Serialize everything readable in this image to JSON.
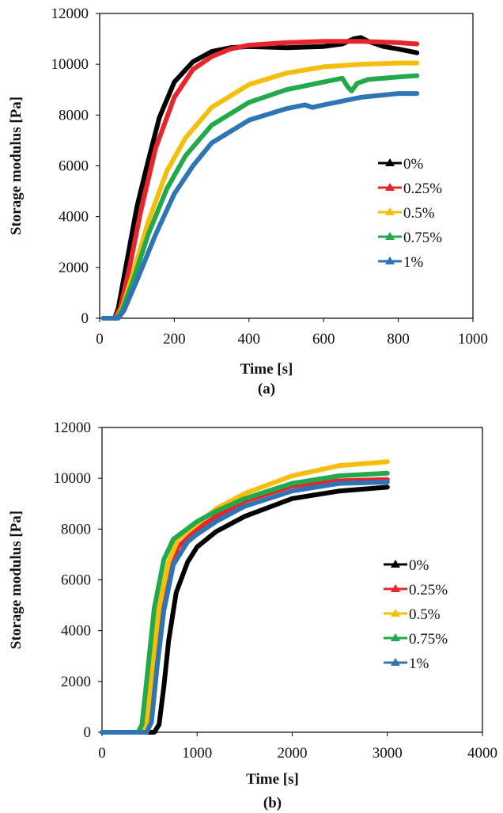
{
  "chart_data": [
    {
      "type": "line",
      "panel_label": "(a)",
      "xlabel": "Time [s]",
      "ylabel": "Storage modulus [Pa]",
      "xlim": [
        0,
        1000
      ],
      "ylim": [
        0,
        12000
      ],
      "xticks": [
        0,
        200,
        400,
        600,
        800,
        1000
      ],
      "yticks": [
        0,
        2000,
        4000,
        6000,
        8000,
        10000,
        12000
      ],
      "legend_position": "right-middle",
      "series": [
        {
          "name": "0%",
          "color": "#000000",
          "points": [
            [
              10,
              0
            ],
            [
              40,
              0
            ],
            [
              50,
              400
            ],
            [
              70,
              2000
            ],
            [
              100,
              4400
            ],
            [
              130,
              6200
            ],
            [
              160,
              7900
            ],
            [
              200,
              9300
            ],
            [
              250,
              10100
            ],
            [
              300,
              10500
            ],
            [
              350,
              10650
            ],
            [
              400,
              10700
            ],
            [
              500,
              10650
            ],
            [
              600,
              10700
            ],
            [
              650,
              10800
            ],
            [
              680,
              11000
            ],
            [
              700,
              11050
            ],
            [
              720,
              10900
            ],
            [
              760,
              10700
            ],
            [
              800,
              10600
            ],
            [
              850,
              10450
            ]
          ]
        },
        {
          "name": "0.25%",
          "color": "#e8252a",
          "points": [
            [
              10,
              0
            ],
            [
              40,
              0
            ],
            [
              55,
              400
            ],
            [
              80,
              2000
            ],
            [
              110,
              4200
            ],
            [
              150,
              6700
            ],
            [
              200,
              8700
            ],
            [
              250,
              9800
            ],
            [
              300,
              10300
            ],
            [
              350,
              10600
            ],
            [
              400,
              10750
            ],
            [
              500,
              10850
            ],
            [
              600,
              10900
            ],
            [
              700,
              10900
            ],
            [
              800,
              10850
            ],
            [
              850,
              10800
            ]
          ]
        },
        {
          "name": "0.5%",
          "color": "#f5be0b",
          "points": [
            [
              10,
              0
            ],
            [
              45,
              0
            ],
            [
              60,
              400
            ],
            [
              90,
              1800
            ],
            [
              130,
              3800
            ],
            [
              180,
              5800
            ],
            [
              230,
              7100
            ],
            [
              300,
              8300
            ],
            [
              400,
              9200
            ],
            [
              500,
              9650
            ],
            [
              600,
              9900
            ],
            [
              700,
              10000
            ],
            [
              800,
              10050
            ],
            [
              850,
              10050
            ]
          ]
        },
        {
          "name": "0.75%",
          "color": "#22a94b",
          "points": [
            [
              10,
              0
            ],
            [
              45,
              0
            ],
            [
              60,
              300
            ],
            [
              90,
              1500
            ],
            [
              130,
              3300
            ],
            [
              180,
              5100
            ],
            [
              230,
              6400
            ],
            [
              300,
              7600
            ],
            [
              400,
              8500
            ],
            [
              500,
              9000
            ],
            [
              600,
              9300
            ],
            [
              650,
              9450
            ],
            [
              665,
              9100
            ],
            [
              675,
              8950
            ],
            [
              690,
              9250
            ],
            [
              720,
              9400
            ],
            [
              800,
              9500
            ],
            [
              850,
              9550
            ]
          ]
        },
        {
          "name": "1%",
          "color": "#2e75b6",
          "points": [
            [
              10,
              0
            ],
            [
              50,
              0
            ],
            [
              65,
              300
            ],
            [
              100,
              1500
            ],
            [
              150,
              3300
            ],
            [
              200,
              4900
            ],
            [
              250,
              6000
            ],
            [
              300,
              6900
            ],
            [
              400,
              7800
            ],
            [
              500,
              8250
            ],
            [
              550,
              8400
            ],
            [
              570,
              8300
            ],
            [
              600,
              8400
            ],
            [
              700,
              8700
            ],
            [
              800,
              8850
            ],
            [
              850,
              8850
            ]
          ]
        }
      ]
    },
    {
      "type": "line",
      "panel_label": "(b)",
      "xlabel": "Time [s]",
      "ylabel": "Storage modulus [Pa]",
      "xlim": [
        0,
        4000
      ],
      "ylim": [
        0,
        12000
      ],
      "xticks": [
        0,
        1000,
        2000,
        3000,
        4000
      ],
      "yticks": [
        0,
        2000,
        4000,
        6000,
        8000,
        10000,
        12000
      ],
      "legend_position": "right-middle",
      "series": [
        {
          "name": "0%",
          "color": "#000000",
          "points": [
            [
              0,
              0
            ],
            [
              550,
              0
            ],
            [
              600,
              300
            ],
            [
              650,
              1800
            ],
            [
              700,
              3600
            ],
            [
              780,
              5500
            ],
            [
              900,
              6700
            ],
            [
              1000,
              7300
            ],
            [
              1200,
              7900
            ],
            [
              1500,
              8500
            ],
            [
              2000,
              9200
            ],
            [
              2500,
              9500
            ],
            [
              3000,
              9650
            ]
          ]
        },
        {
          "name": "0.25%",
          "color": "#e8252a",
          "points": [
            [
              0,
              0
            ],
            [
              450,
              0
            ],
            [
              500,
              400
            ],
            [
              560,
              2400
            ],
            [
              620,
              4500
            ],
            [
              700,
              6300
            ],
            [
              800,
              7300
            ],
            [
              1000,
              8000
            ],
            [
              1200,
              8500
            ],
            [
              1500,
              9100
            ],
            [
              2000,
              9700
            ],
            [
              2500,
              9900
            ],
            [
              3000,
              9950
            ]
          ]
        },
        {
          "name": "0.5%",
          "color": "#f5be0b",
          "points": [
            [
              0,
              0
            ],
            [
              420,
              0
            ],
            [
              470,
              400
            ],
            [
              530,
              2600
            ],
            [
              600,
              4900
            ],
            [
              700,
              6700
            ],
            [
              800,
              7600
            ],
            [
              1000,
              8200
            ],
            [
              1200,
              8800
            ],
            [
              1500,
              9400
            ],
            [
              2000,
              10100
            ],
            [
              2500,
              10500
            ],
            [
              3000,
              10650
            ]
          ]
        },
        {
          "name": "0.75%",
          "color": "#22a94b",
          "points": [
            [
              0,
              0
            ],
            [
              380,
              0
            ],
            [
              420,
              300
            ],
            [
              480,
              2400
            ],
            [
              550,
              4900
            ],
            [
              650,
              6800
            ],
            [
              750,
              7600
            ],
            [
              1000,
              8300
            ],
            [
              1200,
              8700
            ],
            [
              1500,
              9200
            ],
            [
              2000,
              9800
            ],
            [
              2500,
              10100
            ],
            [
              3000,
              10200
            ]
          ]
        },
        {
          "name": "1%",
          "color": "#2e75b6",
          "points": [
            [
              0,
              0
            ],
            [
              470,
              0
            ],
            [
              520,
              400
            ],
            [
              580,
              2600
            ],
            [
              650,
              4800
            ],
            [
              750,
              6600
            ],
            [
              900,
              7500
            ],
            [
              1000,
              7800
            ],
            [
              1200,
              8300
            ],
            [
              1500,
              8900
            ],
            [
              2000,
              9500
            ],
            [
              2500,
              9800
            ],
            [
              3000,
              9850
            ]
          ]
        }
      ]
    }
  ]
}
